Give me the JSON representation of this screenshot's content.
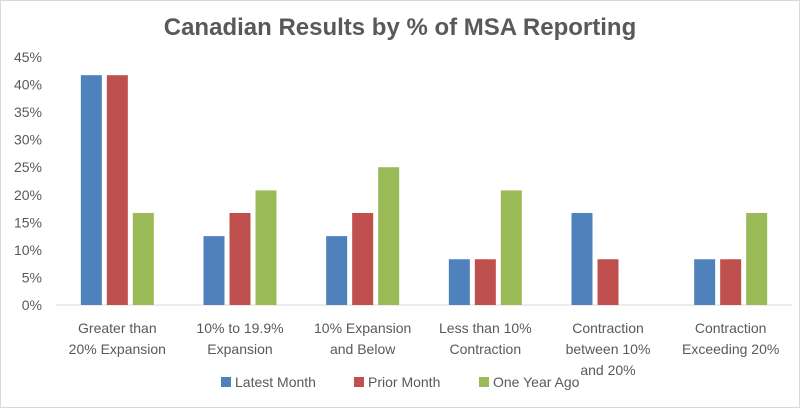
{
  "chart_data": {
    "type": "bar",
    "title": "Canadian Results by % of MSA Reporting",
    "xlabel": "",
    "ylabel": "",
    "ylim": [
      0,
      45
    ],
    "yticks": [
      "0%",
      "5%",
      "10%",
      "15%",
      "20%",
      "25%",
      "30%",
      "35%",
      "40%",
      "45%"
    ],
    "categories": [
      [
        "Greater than",
        "20% Expansion"
      ],
      [
        "10% to 19.9%",
        "Expansion"
      ],
      [
        "10% Expansion",
        "and Below"
      ],
      [
        "Less than 10%",
        "Contraction"
      ],
      [
        "Contraction",
        "between 10%",
        "and 20%"
      ],
      [
        "Contraction",
        "Exceeding 20%"
      ]
    ],
    "series": [
      {
        "name": "Latest Month",
        "color": "#4f81bd",
        "values": [
          41.7,
          12.5,
          12.5,
          8.3,
          16.7,
          8.3
        ]
      },
      {
        "name": "Prior Month",
        "color": "#c0504d",
        "values": [
          41.7,
          16.7,
          16.7,
          8.3,
          8.3,
          8.3
        ]
      },
      {
        "name": "One Year Ago",
        "color": "#9bbb59",
        "values": [
          16.7,
          20.8,
          25.0,
          20.8,
          0,
          16.7
        ]
      }
    ],
    "grid": false,
    "legend_position": "bottom"
  }
}
